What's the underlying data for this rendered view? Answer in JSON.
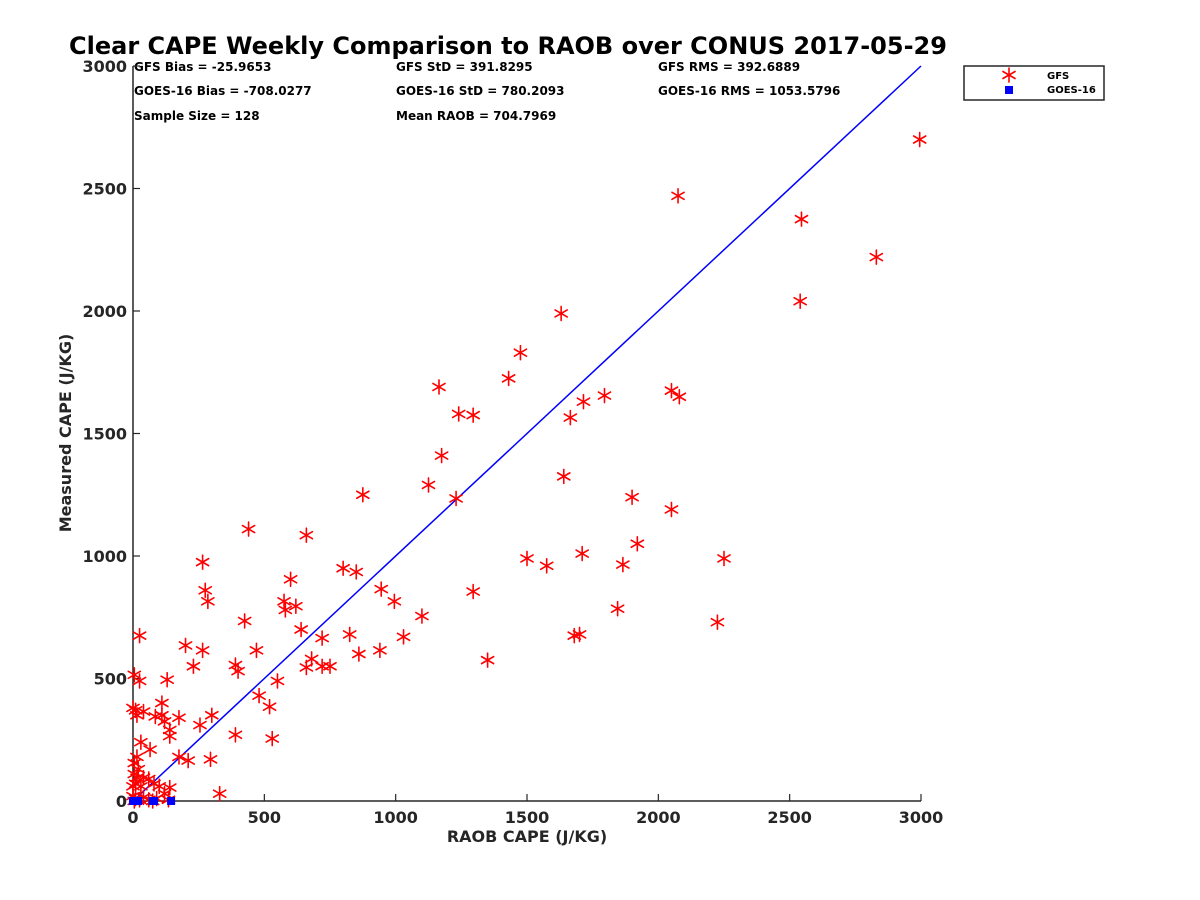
{
  "colors": {
    "gfs": "#ff0000",
    "goes16": "#0000ff",
    "line": "#0000ff",
    "axis": "#262626"
  },
  "icons": {
    "gfs": "red-asterisk-marker",
    "goes16": "blue-square-marker"
  },
  "chart_data": {
    "type": "scatter",
    "title": "Clear CAPE Weekly Comparison to RAOB over CONUS 2017-05-29",
    "xlabel": "RAOB CAPE (J/KG)",
    "ylabel": "Measured CAPE (J/KG)",
    "xlim": [
      0,
      3000
    ],
    "ylim": [
      0,
      3000
    ],
    "xticks": [
      0,
      500,
      1000,
      1500,
      2000,
      2500,
      3000
    ],
    "yticks": [
      0,
      500,
      1000,
      1500,
      2000,
      2500,
      3000
    ],
    "grid": false,
    "legend_placement": "top-right outside",
    "legend": [
      "GFS",
      "GOES-16"
    ],
    "stats": {
      "gfs_bias": "GFS Bias = -25.9653",
      "gfs_std": "GFS StD = 391.8295",
      "gfs_rms": "GFS RMS = 392.6889",
      "goes_bias": "GOES-16 Bias = -708.0277",
      "goes_std": "GOES-16 StD = 780.2093",
      "goes_rms": "GOES-16 RMS = 1053.5796",
      "sample_size": "Sample Size = 128",
      "mean_raob": "Mean RAOB = 704.7969"
    },
    "reference_line": {
      "x": [
        0,
        3000
      ],
      "y": [
        0,
        3000
      ]
    },
    "series": [
      {
        "name": "GFS",
        "marker": "asterisk",
        "points": [
          [
            2995,
            2700
          ],
          [
            2075,
            2470
          ],
          [
            2545,
            2375
          ],
          [
            2830,
            2220
          ],
          [
            2540,
            2040
          ],
          [
            1630,
            1990
          ],
          [
            1475,
            1830
          ],
          [
            1430,
            1725
          ],
          [
            1165,
            1690
          ],
          [
            2050,
            1675
          ],
          [
            2080,
            1650
          ],
          [
            1795,
            1655
          ],
          [
            1715,
            1630
          ],
          [
            1240,
            1580
          ],
          [
            1295,
            1575
          ],
          [
            1665,
            1565
          ],
          [
            1175,
            1410
          ],
          [
            1640,
            1325
          ],
          [
            1125,
            1290
          ],
          [
            875,
            1250
          ],
          [
            1230,
            1235
          ],
          [
            1900,
            1240
          ],
          [
            2050,
            1190
          ],
          [
            440,
            1110
          ],
          [
            660,
            1085
          ],
          [
            1920,
            1050
          ],
          [
            1710,
            1010
          ],
          [
            1500,
            990
          ],
          [
            2250,
            990
          ],
          [
            265,
            975
          ],
          [
            1575,
            960
          ],
          [
            1865,
            965
          ],
          [
            800,
            950
          ],
          [
            850,
            935
          ],
          [
            600,
            905
          ],
          [
            275,
            860
          ],
          [
            945,
            865
          ],
          [
            1295,
            855
          ],
          [
            285,
            815
          ],
          [
            575,
            815
          ],
          [
            995,
            815
          ],
          [
            580,
            780
          ],
          [
            620,
            795
          ],
          [
            1845,
            785
          ],
          [
            1100,
            755
          ],
          [
            425,
            735
          ],
          [
            2225,
            730
          ],
          [
            640,
            700
          ],
          [
            1680,
            675
          ],
          [
            1700,
            680
          ],
          [
            25,
            675
          ],
          [
            720,
            665
          ],
          [
            1030,
            670
          ],
          [
            825,
            680
          ],
          [
            200,
            635
          ],
          [
            265,
            615
          ],
          [
            470,
            615
          ],
          [
            860,
            600
          ],
          [
            940,
            615
          ],
          [
            680,
            580
          ],
          [
            1350,
            575
          ],
          [
            390,
            555
          ],
          [
            660,
            545
          ],
          [
            230,
            550
          ],
          [
            400,
            530
          ],
          [
            720,
            550
          ],
          [
            750,
            550
          ],
          [
            5,
            515
          ],
          [
            25,
            490
          ],
          [
            130,
            495
          ],
          [
            550,
            490
          ],
          [
            480,
            430
          ],
          [
            520,
            385
          ],
          [
            110,
            400
          ],
          [
            0,
            380
          ],
          [
            10,
            370
          ],
          [
            15,
            350
          ],
          [
            40,
            365
          ],
          [
            85,
            345
          ],
          [
            110,
            350
          ],
          [
            120,
            325
          ],
          [
            175,
            340
          ],
          [
            300,
            350
          ],
          [
            255,
            310
          ],
          [
            140,
            290
          ],
          [
            140,
            265
          ],
          [
            390,
            270
          ],
          [
            530,
            255
          ],
          [
            30,
            240
          ],
          [
            65,
            210
          ],
          [
            175,
            180
          ],
          [
            210,
            165
          ],
          [
            295,
            170
          ],
          [
            5,
            155
          ],
          [
            20,
            130
          ],
          [
            5,
            110
          ],
          [
            15,
            95
          ],
          [
            40,
            95
          ],
          [
            60,
            90
          ],
          [
            80,
            70
          ],
          [
            0,
            60
          ],
          [
            10,
            70
          ],
          [
            30,
            60
          ],
          [
            100,
            60
          ],
          [
            140,
            55
          ],
          [
            120,
            30
          ],
          [
            330,
            30
          ],
          [
            0,
            20
          ],
          [
            10,
            10
          ],
          [
            25,
            5
          ],
          [
            40,
            15
          ],
          [
            60,
            5
          ],
          [
            75,
            0
          ],
          [
            90,
            10
          ],
          [
            135,
            5
          ],
          [
            5,
            0
          ],
          [
            15,
            180
          ]
        ]
      },
      {
        "name": "GOES-16",
        "marker": "square",
        "points": [
          [
            0,
            0
          ],
          [
            5,
            0
          ],
          [
            10,
            0
          ],
          [
            15,
            0
          ],
          [
            20,
            0
          ],
          [
            75,
            0
          ],
          [
            80,
            0
          ],
          [
            145,
            0
          ]
        ]
      }
    ]
  }
}
